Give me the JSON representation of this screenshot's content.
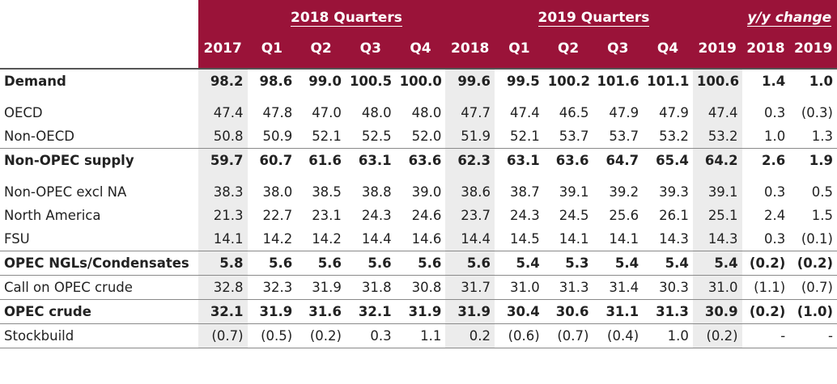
{
  "header": {
    "group_2018": "2018 Quarters",
    "group_2019": "2019 Quarters",
    "group_yy": "y/y change",
    "columns": [
      "2017",
      "Q1",
      "Q2",
      "Q3",
      "Q4",
      "2018",
      "Q1",
      "Q2",
      "Q3",
      "Q4",
      "2019",
      "2018",
      "2019"
    ]
  },
  "rows": [
    {
      "label": "Demand",
      "values": [
        "98.2",
        "98.6",
        "99.0",
        "100.5",
        "100.0",
        "99.6",
        "99.5",
        "100.2",
        "101.6",
        "101.1",
        "100.6",
        "1.4",
        "1.0"
      ]
    },
    {
      "label": "OECD",
      "values": [
        "47.4",
        "47.8",
        "47.0",
        "48.0",
        "48.0",
        "47.7",
        "47.4",
        "46.5",
        "47.9",
        "47.9",
        "47.4",
        "0.3",
        "(0.3)"
      ]
    },
    {
      "label": "Non-OECD",
      "values": [
        "50.8",
        "50.9",
        "52.1",
        "52.5",
        "52.0",
        "51.9",
        "52.1",
        "53.7",
        "53.7",
        "53.2",
        "53.2",
        "1.0",
        "1.3"
      ]
    },
    {
      "label": "Non-OPEC supply",
      "values": [
        "59.7",
        "60.7",
        "61.6",
        "63.1",
        "63.6",
        "62.3",
        "63.1",
        "63.6",
        "64.7",
        "65.4",
        "64.2",
        "2.6",
        "1.9"
      ]
    },
    {
      "label": "Non-OPEC excl NA",
      "values": [
        "38.3",
        "38.0",
        "38.5",
        "38.8",
        "39.0",
        "38.6",
        "38.7",
        "39.1",
        "39.2",
        "39.3",
        "39.1",
        "0.3",
        "0.5"
      ]
    },
    {
      "label": "North America",
      "values": [
        "21.3",
        "22.7",
        "23.1",
        "24.3",
        "24.6",
        "23.7",
        "24.3",
        "24.5",
        "25.6",
        "26.1",
        "25.1",
        "2.4",
        "1.5"
      ]
    },
    {
      "label": "FSU",
      "values": [
        "14.1",
        "14.2",
        "14.2",
        "14.4",
        "14.6",
        "14.4",
        "14.5",
        "14.1",
        "14.1",
        "14.3",
        "14.3",
        "0.3",
        "(0.1)"
      ]
    },
    {
      "label": "OPEC NGLs/Condensates",
      "values": [
        "5.8",
        "5.6",
        "5.6",
        "5.6",
        "5.6",
        "5.6",
        "5.4",
        "5.3",
        "5.4",
        "5.4",
        "5.4",
        "(0.2)",
        "(0.2)"
      ]
    },
    {
      "label": "Call on OPEC crude",
      "values": [
        "32.8",
        "32.3",
        "31.9",
        "31.8",
        "30.8",
        "31.7",
        "31.0",
        "31.3",
        "31.4",
        "30.3",
        "31.0",
        "(1.1)",
        "(0.7)"
      ]
    },
    {
      "label": "OPEC crude",
      "values": [
        "32.1",
        "31.9",
        "31.6",
        "32.1",
        "31.9",
        "31.9",
        "30.4",
        "30.6",
        "31.1",
        "31.3",
        "30.9",
        "(0.2)",
        "(1.0)"
      ]
    },
    {
      "label": "Stockbuild",
      "values": [
        "(0.7)",
        "(0.5)",
        "(0.2)",
        "0.3",
        "1.1",
        "0.2",
        "(0.6)",
        "(0.7)",
        "(0.4)",
        "1.0",
        "(0.2)",
        "-",
        "-"
      ]
    }
  ],
  "colors": {
    "header_bg": "#9a1339",
    "shade": "#ececec"
  }
}
